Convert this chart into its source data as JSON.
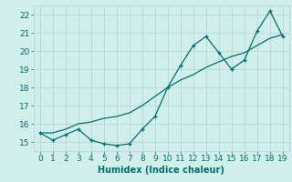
{
  "xlabel": "Humidex (Indice chaleur)",
  "ylabel": "",
  "x": [
    0,
    1,
    2,
    3,
    4,
    5,
    6,
    7,
    8,
    9,
    10,
    11,
    12,
    13,
    14,
    15,
    16,
    17,
    18,
    19
  ],
  "y_line1": [
    15.5,
    15.1,
    15.4,
    15.7,
    15.1,
    14.9,
    14.8,
    14.9,
    15.7,
    16.4,
    18.0,
    19.2,
    20.3,
    20.8,
    19.9,
    19.0,
    19.5,
    21.1,
    22.2,
    20.8
  ],
  "y_line2": [
    15.5,
    15.5,
    15.7,
    16.0,
    16.1,
    16.3,
    16.4,
    16.6,
    17.0,
    17.5,
    18.0,
    18.4,
    18.7,
    19.1,
    19.4,
    19.7,
    19.9,
    20.3,
    20.7,
    20.9
  ],
  "line_color": "#007070",
  "bg_color": "#d0eeea",
  "grid_color": "#b8d8d4",
  "ylim": [
    14.5,
    22.5
  ],
  "yticks": [
    15,
    16,
    17,
    18,
    19,
    20,
    21,
    22
  ],
  "xticks": [
    0,
    1,
    2,
    3,
    4,
    5,
    6,
    7,
    8,
    9,
    10,
    11,
    12,
    13,
    14,
    15,
    16,
    17,
    18,
    19
  ],
  "xlabel_fontsize": 7,
  "tick_fontsize": 6.5
}
